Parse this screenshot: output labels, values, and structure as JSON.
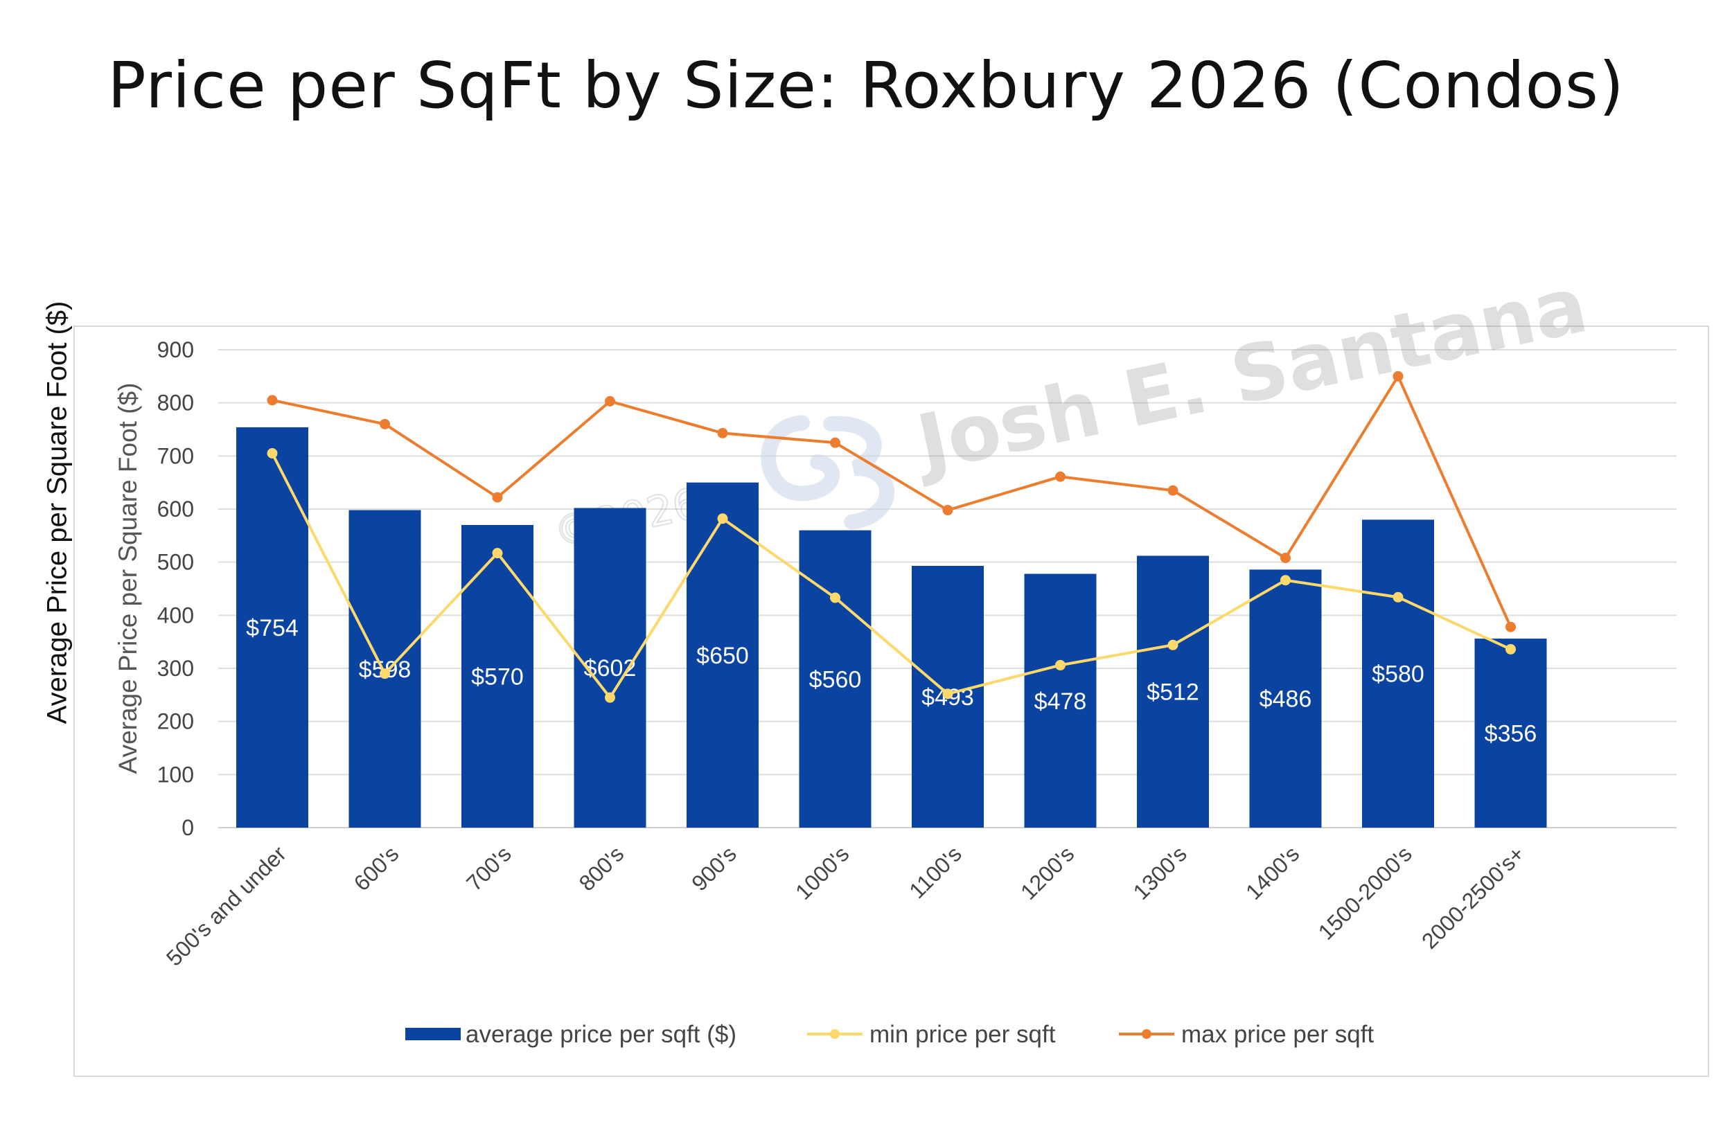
{
  "chart_data": {
    "type": "bar",
    "title": "Price per SqFt by Size: Roxbury 2026 (Condos)",
    "ylabel": "Average Price per Square Foot ($)",
    "ylim": [
      0,
      900
    ],
    "yticks": [
      0,
      100,
      200,
      300,
      400,
      500,
      600,
      700,
      800,
      900
    ],
    "grid": true,
    "legend_position": "bottom",
    "categories": [
      "500's and under",
      "600's",
      "700's",
      "800's",
      "900's",
      "1000's",
      "1100's",
      "1200's",
      "1300's",
      "1400's",
      "1500-2000's",
      "2000-2500's+"
    ],
    "series": [
      {
        "name": "average price per sqft ($)",
        "type": "bar",
        "color": "#0a43a0",
        "values": [
          754,
          598,
          570,
          602,
          650,
          560,
          493,
          478,
          512,
          486,
          580,
          356
        ],
        "labels": [
          "$754",
          "$598",
          "$570",
          "$602",
          "$650",
          "$560",
          "$493",
          "$478",
          "$512",
          "$486",
          "$580",
          "$356"
        ]
      },
      {
        "name": "min price per sqft",
        "type": "line",
        "color": "#fcd96a",
        "values": [
          705,
          290,
          517,
          245,
          582,
          433,
          252,
          306,
          344,
          466,
          434,
          336
        ]
      },
      {
        "name": "max price per sqft",
        "type": "line",
        "color": "#ec7d2f",
        "values": [
          805,
          760,
          622,
          803,
          743,
          725,
          598,
          661,
          635,
          508,
          850,
          378
        ]
      }
    ]
  },
  "watermark": {
    "text": "Josh E. Santana",
    "copyright": "©2026"
  }
}
